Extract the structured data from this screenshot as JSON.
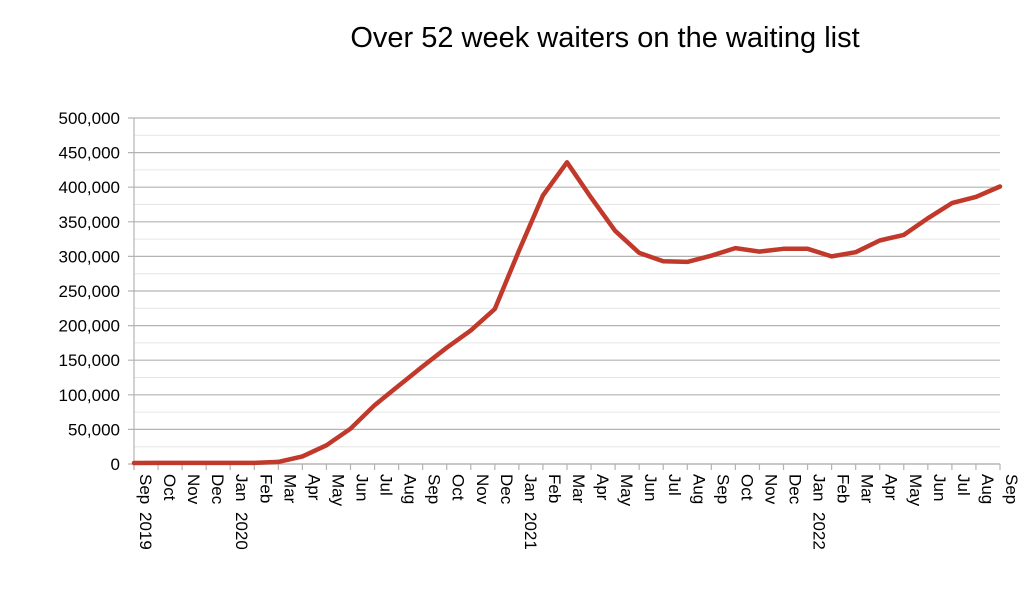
{
  "chart_data": {
    "type": "line",
    "title": "Over 52 week waiters on the waiting list",
    "xlabel": "",
    "ylabel": "",
    "ylim": [
      0,
      500000
    ],
    "yticks": [
      "0",
      "50,000",
      "100,000",
      "150,000",
      "200,000",
      "250,000",
      "300,000",
      "350,000",
      "400,000",
      "450,000",
      "500,000"
    ],
    "grid": true,
    "legend": "none",
    "x": [
      {
        "month": "Sep",
        "year": "2019"
      },
      {
        "month": "Oct",
        "year": ""
      },
      {
        "month": "Nov",
        "year": ""
      },
      {
        "month": "Dec",
        "year": ""
      },
      {
        "month": "Jan",
        "year": "2020"
      },
      {
        "month": "Feb",
        "year": ""
      },
      {
        "month": "Mar",
        "year": ""
      },
      {
        "month": "Apr",
        "year": ""
      },
      {
        "month": "May",
        "year": ""
      },
      {
        "month": "Jun",
        "year": ""
      },
      {
        "month": "Jul",
        "year": ""
      },
      {
        "month": "Aug",
        "year": ""
      },
      {
        "month": "Sep",
        "year": ""
      },
      {
        "month": "Oct",
        "year": ""
      },
      {
        "month": "Nov",
        "year": ""
      },
      {
        "month": "Dec",
        "year": ""
      },
      {
        "month": "Jan",
        "year": "2021"
      },
      {
        "month": "Feb",
        "year": ""
      },
      {
        "month": "Mar",
        "year": ""
      },
      {
        "month": "Apr",
        "year": ""
      },
      {
        "month": "May",
        "year": ""
      },
      {
        "month": "Jun",
        "year": ""
      },
      {
        "month": "Jul",
        "year": ""
      },
      {
        "month": "Aug",
        "year": ""
      },
      {
        "month": "Sep",
        "year": ""
      },
      {
        "month": "Oct",
        "year": ""
      },
      {
        "month": "Nov",
        "year": ""
      },
      {
        "month": "Dec",
        "year": ""
      },
      {
        "month": "Jan",
        "year": "2022"
      },
      {
        "month": "Feb",
        "year": ""
      },
      {
        "month": "Mar",
        "year": ""
      },
      {
        "month": "Apr",
        "year": ""
      },
      {
        "month": "May",
        "year": ""
      },
      {
        "month": "Jun",
        "year": ""
      },
      {
        "month": "Jul",
        "year": ""
      },
      {
        "month": "Aug",
        "year": ""
      },
      {
        "month": "Sep",
        "year": ""
      }
    ],
    "series": [
      {
        "color": "#c0392b",
        "values": [
          1500,
          1600,
          1600,
          1600,
          1600,
          1600,
          3000,
          11000,
          27000,
          51000,
          85000,
          113000,
          141000,
          168000,
          193000,
          224000,
          308000,
          388000,
          436000,
          385000,
          337000,
          305000,
          293000,
          292000,
          301000,
          312000,
          307000,
          311000,
          311000,
          300000,
          306000,
          323000,
          331000,
          355000,
          377000,
          386000,
          401000
        ]
      }
    ]
  }
}
